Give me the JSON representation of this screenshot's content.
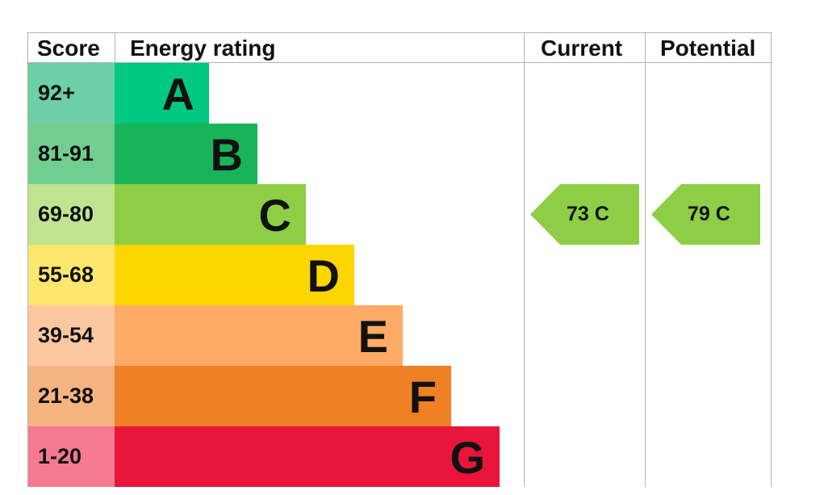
{
  "chart_data": {
    "type": "table",
    "headers": {
      "score": "Score",
      "rating": "Energy rating",
      "current": "Current",
      "potential": "Potential"
    },
    "bands": [
      {
        "score": "92+",
        "letter": "A",
        "color": "#00c781",
        "score_color": "#6ccfa5",
        "extent": 1
      },
      {
        "score": "81-91",
        "letter": "B",
        "color": "#19b459",
        "score_color": "#72cd90",
        "extent": 2
      },
      {
        "score": "69-80",
        "letter": "C",
        "color": "#8dce46",
        "score_color": "#bfe390",
        "extent": 3
      },
      {
        "score": "55-68",
        "letter": "D",
        "color": "#ffd500",
        "score_color": "#ffe66d",
        "extent": 4
      },
      {
        "score": "39-54",
        "letter": "E",
        "color": "#fcaa65",
        "score_color": "#fdc89f",
        "extent": 5
      },
      {
        "score": "21-38",
        "letter": "F",
        "color": "#ef8023",
        "score_color": "#f5b47f",
        "extent": 6
      },
      {
        "score": "1-20",
        "letter": "G",
        "color": "#e9153b",
        "score_color": "#f37a8f",
        "extent": 7
      }
    ],
    "current": {
      "label": "73 C",
      "value": 73,
      "band": "C",
      "color": "#8dce46"
    },
    "potential": {
      "label": "79 C",
      "value": 79,
      "band": "C",
      "color": "#8dce46"
    }
  }
}
